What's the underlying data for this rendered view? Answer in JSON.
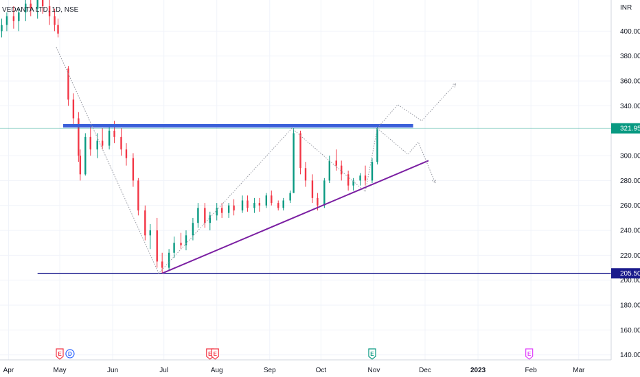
{
  "symbol_label": "VEDANTA LTD, 1D, NSE",
  "currency": "INR",
  "y_ticks": [
    400,
    380,
    360,
    340,
    300,
    280,
    260,
    240,
    220,
    200,
    180,
    160,
    140
  ],
  "x_ticks": [
    {
      "date": "2022-04-01",
      "label": "Apr",
      "bold": false
    },
    {
      "date": "2022-05-01",
      "label": "May",
      "bold": false
    },
    {
      "date": "2022-06-01",
      "label": "Jun",
      "bold": false
    },
    {
      "date": "2022-07-01",
      "label": "Jul",
      "bold": false
    },
    {
      "date": "2022-08-01",
      "label": "Aug",
      "bold": false
    },
    {
      "date": "2022-09-01",
      "label": "Sep",
      "bold": false
    },
    {
      "date": "2022-10-01",
      "label": "Oct",
      "bold": false
    },
    {
      "date": "2022-11-01",
      "label": "Nov",
      "bold": false
    },
    {
      "date": "2022-12-01",
      "label": "Dec",
      "bold": false
    },
    {
      "date": "2023-01-01",
      "label": "2023",
      "bold": true
    },
    {
      "date": "2023-02-01",
      "label": "Feb",
      "bold": false
    },
    {
      "date": "2023-03-01",
      "label": "Mar",
      "bold": false
    }
  ],
  "price_labels": [
    {
      "value": 321.95,
      "text": "321.95",
      "color": "#089981"
    },
    {
      "value": 205.5,
      "text": "205.50",
      "color": "#1a1a8c"
    }
  ],
  "events": [
    {
      "date": "2022-05-01",
      "letter": "E",
      "color": "#f23645",
      "shape": "flag"
    },
    {
      "date": "2022-05-07",
      "letter": "D",
      "color": "#2962ff",
      "shape": "circle"
    },
    {
      "date": "2022-07-28",
      "letter": "E",
      "color": "#f23645",
      "shape": "flag"
    },
    {
      "date": "2022-07-31",
      "letter": "E",
      "color": "#f23645",
      "shape": "flag"
    },
    {
      "date": "2022-10-31",
      "letter": "E",
      "color": "#089981",
      "shape": "flag"
    },
    {
      "date": "2023-01-31",
      "letter": "E",
      "color": "#e040fb",
      "shape": "flag"
    }
  ],
  "colors": {
    "up": "#089981",
    "down": "#f23645",
    "resistance": "#3a5fd9",
    "trendline": "#7b1fa2",
    "support": "#1a1a8c",
    "last_price_line": "#089981",
    "grid": "#f0f3fa",
    "axis_border": "#d1d4dc",
    "projection": "#9598a1"
  },
  "chart_data": {
    "type": "candlestick",
    "x_range": [
      "2022-03-27",
      "2023-03-20"
    ],
    "y_range": [
      136,
      425
    ],
    "grid": true,
    "ohlc_ref": [
      [
        "2022-03-28",
        400,
        410,
        395,
        405
      ],
      [
        "2022-03-31",
        405,
        415,
        400,
        412
      ],
      [
        "2022-04-04",
        412,
        420,
        402,
        408
      ],
      [
        "2022-04-07",
        408,
        418,
        400,
        415
      ],
      [
        "2022-04-11",
        415,
        428,
        408,
        422
      ],
      [
        "2022-04-14",
        422,
        430,
        412,
        418
      ],
      [
        "2022-04-18",
        418,
        428,
        410,
        425
      ],
      [
        "2022-04-21",
        425,
        432,
        414,
        420
      ],
      [
        "2022-04-25",
        420,
        426,
        405,
        412
      ],
      [
        "2022-04-28",
        412,
        418,
        400,
        405
      ],
      [
        "2022-04-30",
        405,
        410,
        395,
        398
      ],
      [
        "2022-05-06",
        370,
        372,
        340,
        345
      ],
      [
        "2022-05-09",
        345,
        350,
        325,
        330
      ],
      [
        "2022-05-12",
        330,
        335,
        295,
        300
      ],
      [
        "2022-05-13",
        300,
        305,
        280,
        285
      ],
      [
        "2022-05-16",
        285,
        318,
        284,
        315
      ],
      [
        "2022-05-19",
        315,
        325,
        300,
        305
      ],
      [
        "2022-05-23",
        305,
        318,
        298,
        312
      ],
      [
        "2022-05-26",
        312,
        322,
        305,
        308
      ],
      [
        "2022-05-30",
        308,
        325,
        305,
        320
      ],
      [
        "2022-06-02",
        320,
        328,
        310,
        315
      ],
      [
        "2022-06-06",
        315,
        322,
        300,
        305
      ],
      [
        "2022-06-09",
        305,
        310,
        292,
        298
      ],
      [
        "2022-06-13",
        298,
        302,
        275,
        280
      ],
      [
        "2022-06-16",
        280,
        282,
        252,
        256
      ],
      [
        "2022-06-20",
        256,
        260,
        232,
        236
      ],
      [
        "2022-06-23",
        236,
        245,
        225,
        240
      ],
      [
        "2022-06-27",
        240,
        250,
        210,
        215
      ],
      [
        "2022-06-30",
        215,
        222,
        205,
        210
      ],
      [
        "2022-07-04",
        210,
        225,
        208,
        222
      ],
      [
        "2022-07-07",
        222,
        235,
        218,
        230
      ],
      [
        "2022-07-11",
        230,
        238,
        225,
        228
      ],
      [
        "2022-07-14",
        228,
        240,
        224,
        236
      ],
      [
        "2022-07-18",
        236,
        250,
        232,
        246
      ],
      [
        "2022-07-21",
        246,
        262,
        242,
        258
      ],
      [
        "2022-07-25",
        258,
        262,
        242,
        246
      ],
      [
        "2022-07-28",
        246,
        255,
        240,
        252
      ],
      [
        "2022-08-01",
        252,
        262,
        248,
        258
      ],
      [
        "2022-08-04",
        258,
        262,
        250,
        254
      ],
      [
        "2022-08-08",
        254,
        262,
        250,
        260
      ],
      [
        "2022-08-11",
        260,
        265,
        252,
        256
      ],
      [
        "2022-08-16",
        256,
        268,
        254,
        264
      ],
      [
        "2022-08-19",
        264,
        268,
        255,
        258
      ],
      [
        "2022-08-23",
        258,
        266,
        254,
        262
      ],
      [
        "2022-08-26",
        262,
        266,
        255,
        260
      ],
      [
        "2022-08-30",
        260,
        270,
        258,
        268
      ],
      [
        "2022-09-02",
        268,
        272,
        260,
        262
      ],
      [
        "2022-09-06",
        262,
        264,
        256,
        258
      ],
      [
        "2022-09-09",
        258,
        266,
        256,
        264
      ],
      [
        "2022-09-13",
        264,
        272,
        262,
        270
      ],
      [
        "2022-09-15",
        270,
        322,
        270,
        318
      ],
      [
        "2022-09-19",
        318,
        320,
        285,
        290
      ],
      [
        "2022-09-22",
        290,
        295,
        275,
        280
      ],
      [
        "2022-09-26",
        280,
        285,
        262,
        266
      ],
      [
        "2022-09-29",
        266,
        270,
        256,
        260
      ],
      [
        "2022-10-03",
        260,
        282,
        258,
        280
      ],
      [
        "2022-10-06",
        280,
        300,
        278,
        296
      ],
      [
        "2022-10-10",
        296,
        305,
        288,
        292
      ],
      [
        "2022-10-13",
        292,
        296,
        280,
        285
      ],
      [
        "2022-10-17",
        285,
        288,
        272,
        276
      ],
      [
        "2022-10-20",
        276,
        282,
        272,
        280
      ],
      [
        "2022-10-24",
        280,
        286,
        276,
        284
      ],
      [
        "2022-10-27",
        284,
        292,
        276,
        280
      ],
      [
        "2022-10-31",
        280,
        298,
        278,
        295
      ],
      [
        "2022-11-03",
        295,
        325,
        293,
        321.95
      ]
    ],
    "resistance_level": 324,
    "support_level": 205.5,
    "ascending_trendline": [
      [
        "2022-06-30",
        205.5
      ],
      [
        "2022-12-03",
        296
      ]
    ],
    "projection_path": [
      [
        "2022-04-29",
        387
      ],
      [
        "2022-06-28",
        205.5
      ],
      [
        "2022-09-14",
        322
      ],
      [
        "2022-10-27",
        271
      ],
      [
        "2022-11-03",
        322
      ],
      [
        "2022-11-15",
        341
      ],
      [
        "2022-11-29",
        328
      ],
      [
        "2022-12-19",
        358
      ]
    ],
    "alt_projection_path": [
      [
        "2022-11-03",
        322
      ],
      [
        "2022-11-21",
        301
      ],
      [
        "2022-11-27",
        311
      ],
      [
        "2022-12-07",
        278
      ]
    ]
  }
}
